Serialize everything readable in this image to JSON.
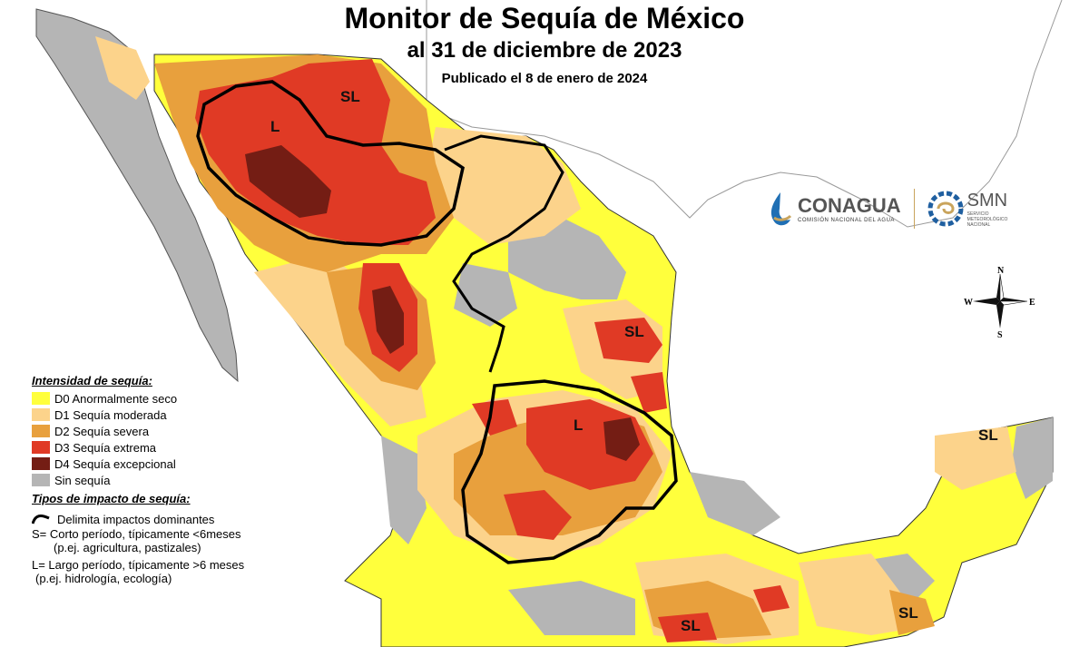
{
  "title": "Monitor de Sequía de México",
  "subtitle": "al 31 de diciembre de 2023",
  "published": "Publicado el 8 de enero de 2024",
  "map_labels": {
    "sl_north": "SL",
    "l_northwest": "L",
    "sl_northeast": "SL",
    "l_center": "L",
    "sl_yucatan": "SL",
    "sl_south": "SL",
    "sl_southeast": "SL"
  },
  "compass": {
    "n": "N",
    "s": "S",
    "e": "E",
    "w": "W"
  },
  "logos": {
    "conagua": "CONAGUA",
    "conagua_sub": "COMISIÓN NACIONAL DEL AGUA",
    "smn": "SMN",
    "smn_sub1": "SERVICIO",
    "smn_sub2": "METEOROLÓGICO",
    "smn_sub3": "NACIONAL"
  },
  "legend": {
    "intensity_title": "Intensidad de sequía:",
    "items": [
      {
        "label": "D0 Anormalmente seco",
        "color": "#ffff3c"
      },
      {
        "label": "D1 Sequía moderada",
        "color": "#fcd38b"
      },
      {
        "label": "D2 Sequía severa",
        "color": "#e8a03d"
      },
      {
        "label": "D3 Sequía extrema",
        "color": "#e03a25"
      },
      {
        "label": "D4 Sequía excepcional",
        "color": "#741d14"
      },
      {
        "label": "Sin sequía",
        "color": "#b5b5b5"
      }
    ],
    "impact_title": "Tipos de impacto de sequía:",
    "boundary": "Delimita impactos dominantes",
    "short_1": "S= Corto período, típicamente <6meses",
    "short_2": "(p.ej. agricultura, pastizales)",
    "long_1": "L= Largo período, típicamente >6 meses",
    "long_2": "(p.ej. hidrología, ecología)"
  }
}
